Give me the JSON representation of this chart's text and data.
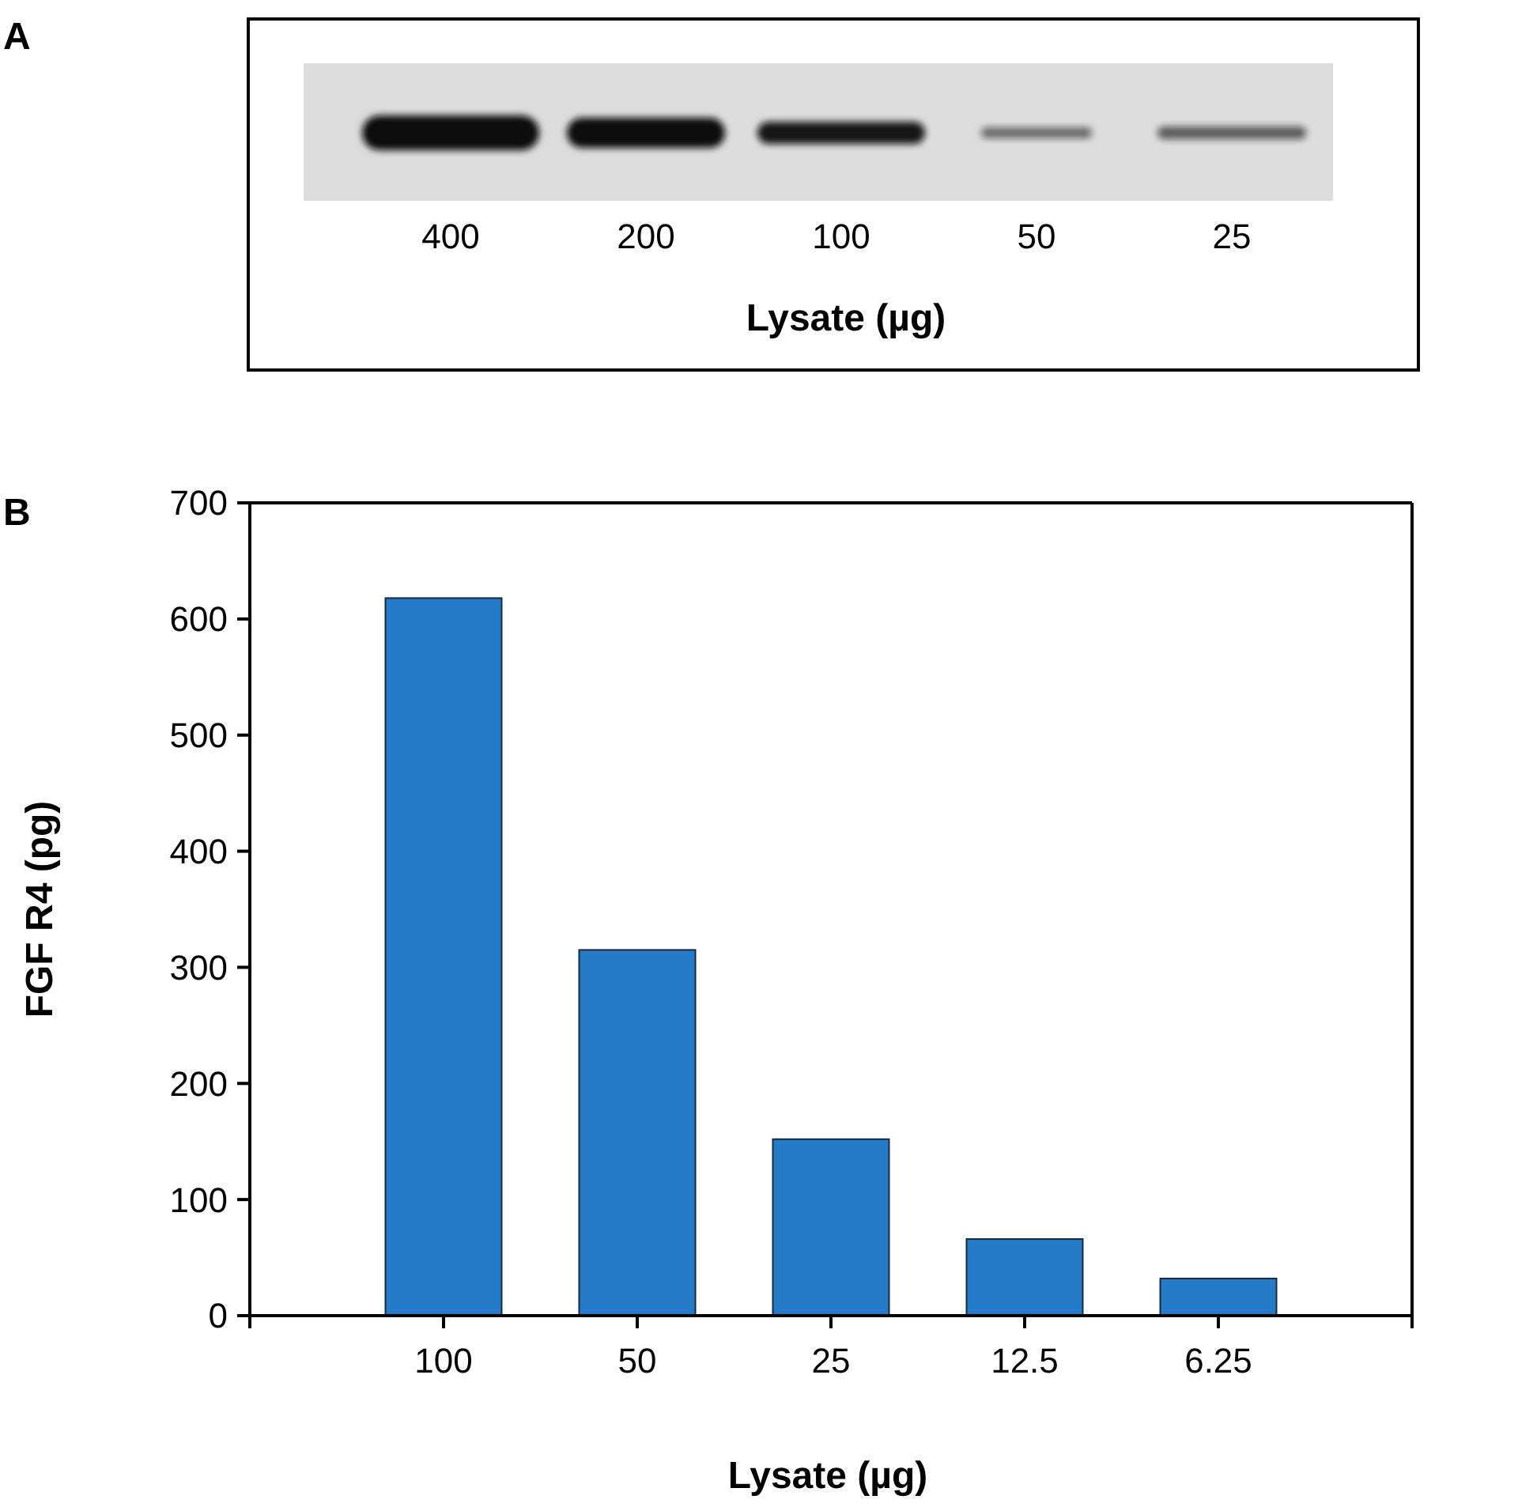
{
  "chart_data": [
    {
      "type": "other",
      "title": "A",
      "categories": [
        "400",
        "200",
        "100",
        "50",
        "25"
      ],
      "xlabel": "Lysate (µg)"
    },
    {
      "type": "bar",
      "title": "B",
      "categories": [
        "100",
        "50",
        "25",
        "12.5",
        "6.25"
      ],
      "values": [
        618,
        315,
        152,
        66,
        32
      ],
      "color": "#247bc7",
      "ylim": [
        0,
        700
      ],
      "yticks": [
        0,
        100,
        200,
        300,
        400,
        500,
        600,
        700
      ],
      "xlabel": "Lysate (µg)",
      "ylabel": "FGF R4 (pg)"
    }
  ]
}
